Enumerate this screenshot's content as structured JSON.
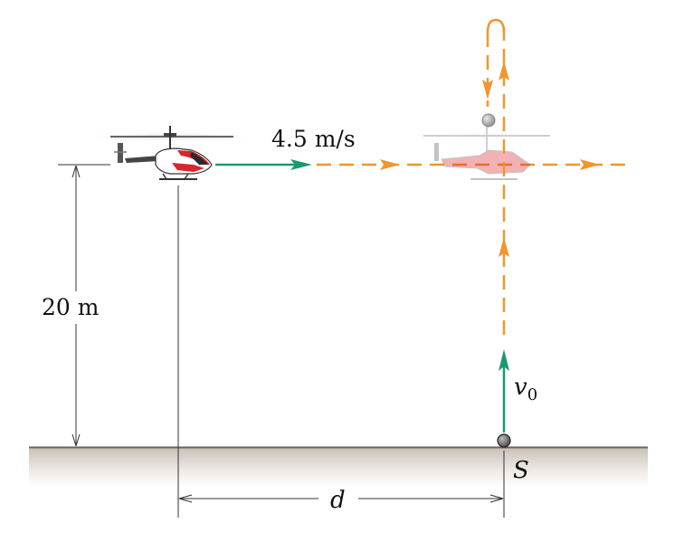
{
  "labels": {
    "speed": "4.5 m/s",
    "height": "20 m",
    "distance": "d",
    "initial_velocity": "v",
    "initial_velocity_sub": "0",
    "point": "S"
  },
  "colors": {
    "green_arrow": "#1a9a6c",
    "orange_path": "#f0962e",
    "ground_top": "#8a7a6e",
    "heli_red": "#d8262c",
    "ball": "#9a9a9a"
  },
  "icons": {
    "helicopter": "helicopter-icon",
    "ghost_helicopter": "helicopter-icon",
    "ball": "ball-icon"
  }
}
